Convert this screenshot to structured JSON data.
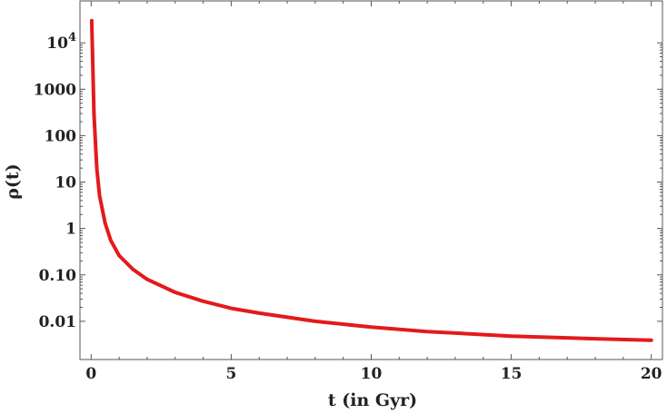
{
  "chart_data": {
    "type": "line",
    "title": "",
    "xlabel": "t (in Gyr)",
    "ylabel": "ρ(t)",
    "yscale": "log",
    "xlim": [
      -0.4,
      20.4
    ],
    "ylim": [
      0.0015,
      80000
    ],
    "xticks": [
      {
        "value": 0,
        "label": "0"
      },
      {
        "value": 5,
        "label": "5"
      },
      {
        "value": 10,
        "label": "10"
      },
      {
        "value": 15,
        "label": "15"
      },
      {
        "value": 20,
        "label": "20"
      }
    ],
    "yticks": [
      {
        "value": 0.01,
        "label": "0.01"
      },
      {
        "value": 0.1,
        "label": "0.10"
      },
      {
        "value": 1,
        "label": "1"
      },
      {
        "value": 10,
        "label": "10"
      },
      {
        "value": 100,
        "label": "100"
      },
      {
        "value": 1000,
        "label": "1000"
      },
      {
        "value": 10000,
        "label": "10",
        "sup": "4"
      }
    ],
    "grid": false,
    "legend": "none",
    "series": [
      {
        "color": "#e31a1c",
        "x": [
          0.02,
          0.05,
          0.1,
          0.2,
          0.3,
          0.5,
          0.7,
          1.0,
          1.5,
          2.0,
          3.0,
          4.0,
          5.0,
          6.0,
          8.0,
          10.0,
          12.0,
          15.0,
          18.0,
          20.0
        ],
        "y": [
          30000,
          5000,
          300,
          20,
          5,
          1.3,
          0.55,
          0.26,
          0.13,
          0.08,
          0.042,
          0.027,
          0.019,
          0.015,
          0.01,
          0.0075,
          0.006,
          0.0048,
          0.0042,
          0.0039
        ]
      }
    ]
  }
}
